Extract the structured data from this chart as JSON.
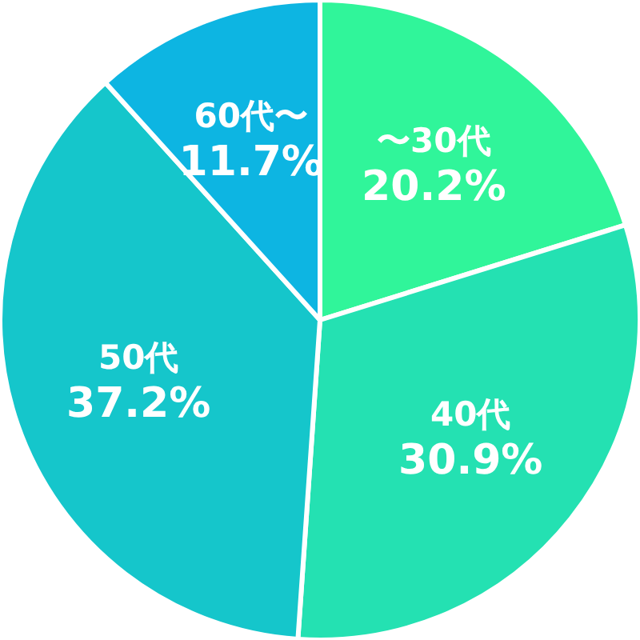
{
  "chart_data": {
    "type": "pie",
    "categories": [
      "〜30代",
      "40代",
      "50代",
      "60代〜"
    ],
    "values": [
      20.2,
      30.9,
      37.2,
      11.7
    ],
    "colors": [
      "#30f59a",
      "#24e1b2",
      "#15c6cb",
      "#0db5e2"
    ],
    "value_labels": [
      "20.2%",
      "30.9%",
      "37.2%",
      "11.7%"
    ]
  }
}
